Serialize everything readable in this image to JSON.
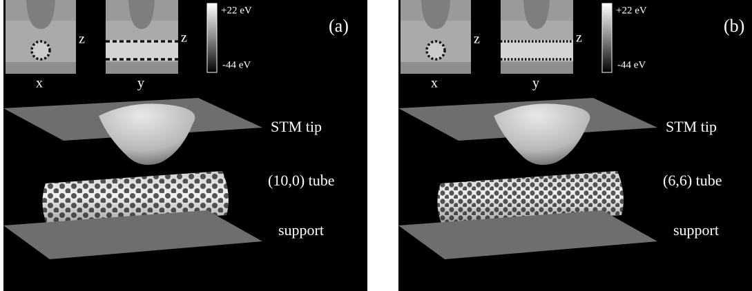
{
  "panels": [
    {
      "label": "(a)",
      "insets": {
        "left_horizontal": "x",
        "left_vertical": "z",
        "right_horizontal": "y",
        "right_vertical": "z"
      },
      "colorbar": {
        "max": "+22 eV",
        "min": "-44 eV"
      },
      "annotations": {
        "tip": "STM tip",
        "tube": "(10,0) tube",
        "support": "support"
      }
    },
    {
      "label": "(b)",
      "insets": {
        "left_horizontal": "x",
        "left_vertical": "z",
        "right_horizontal": "y",
        "right_vertical": "z"
      },
      "colorbar": {
        "max": "+22 eV",
        "min": "-44 eV"
      },
      "annotations": {
        "tip": "STM tip",
        "tube": "(6,6) tube",
        "support": "support"
      }
    }
  ]
}
